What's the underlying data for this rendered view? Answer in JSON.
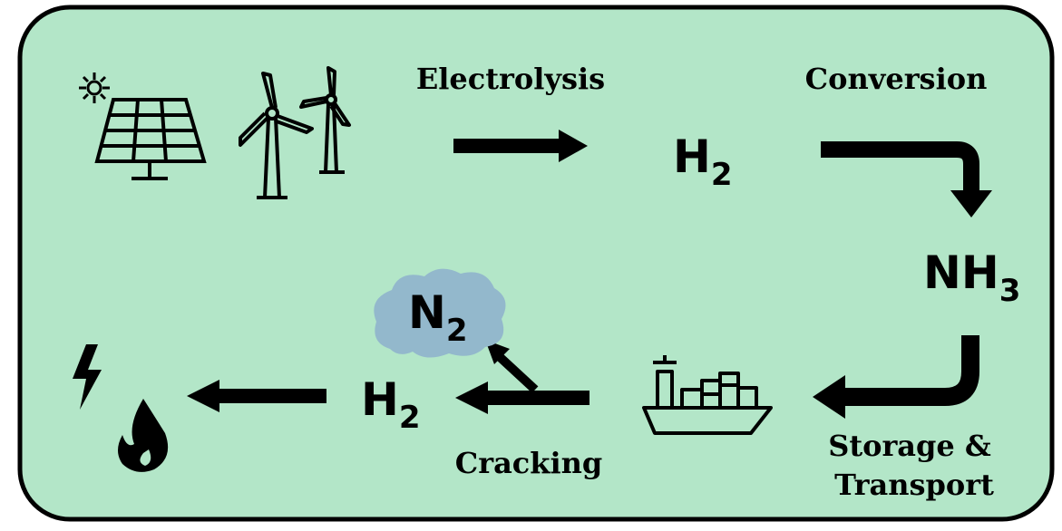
{
  "steps": {
    "electrolysis": "Electrolysis",
    "conversion": "Conversion",
    "storage": [
      "Storage &",
      "Transport"
    ],
    "cracking": "Cracking"
  },
  "species": [
    {
      "symbol": "H",
      "subscript": "2"
    },
    {
      "symbol": "NH",
      "subscript": "3"
    },
    {
      "symbol": "H",
      "subscript": "2"
    },
    {
      "symbol": "N",
      "subscript": "2"
    }
  ]
}
